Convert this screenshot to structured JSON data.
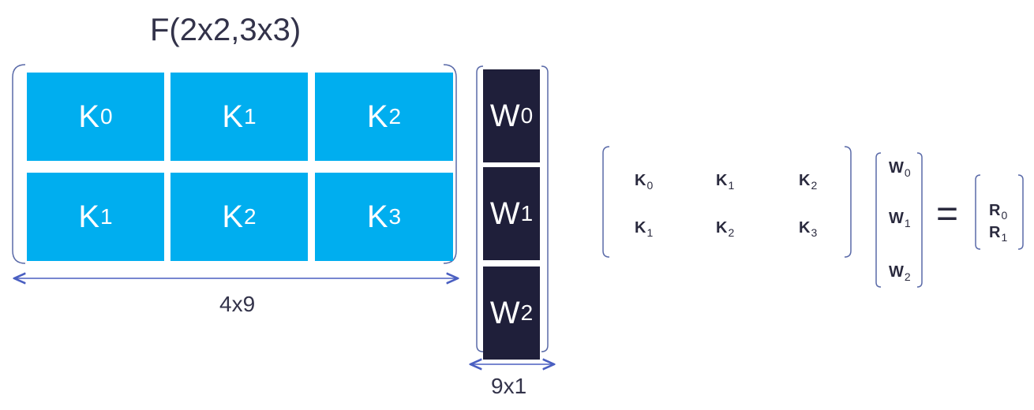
{
  "title": "F(2x2,3x3)",
  "kernel_matrix": {
    "rows": [
      [
        {
          "base": "K",
          "sub": "0"
        },
        {
          "base": "K",
          "sub": "1"
        },
        {
          "base": "K",
          "sub": "2"
        }
      ],
      [
        {
          "base": "K",
          "sub": "1"
        },
        {
          "base": "K",
          "sub": "2"
        },
        {
          "base": "K",
          "sub": "3"
        }
      ]
    ],
    "dimension_label": "4x9",
    "color": "#00aeef"
  },
  "weight_vector": {
    "items": [
      {
        "base": "W",
        "sub": "0"
      },
      {
        "base": "W",
        "sub": "1"
      },
      {
        "base": "W",
        "sub": "2"
      }
    ],
    "dimension_label": "9x1",
    "color": "#1f1f3a"
  },
  "equation": {
    "matrix": [
      [
        {
          "base": "K",
          "sub": "0"
        },
        {
          "base": "K",
          "sub": "1"
        },
        {
          "base": "K",
          "sub": "2"
        }
      ],
      [
        {
          "base": "K",
          "sub": "1"
        },
        {
          "base": "K",
          "sub": "2"
        },
        {
          "base": "K",
          "sub": "3"
        }
      ]
    ],
    "vector": [
      {
        "base": "W",
        "sub": "0"
      },
      {
        "base": "W",
        "sub": "1"
      },
      {
        "base": "W",
        "sub": "2"
      }
    ],
    "equals": "=",
    "result": [
      {
        "base": "R",
        "sub": "0"
      },
      {
        "base": "R",
        "sub": "1"
      }
    ]
  },
  "arrow_color": "#4a5fc1"
}
